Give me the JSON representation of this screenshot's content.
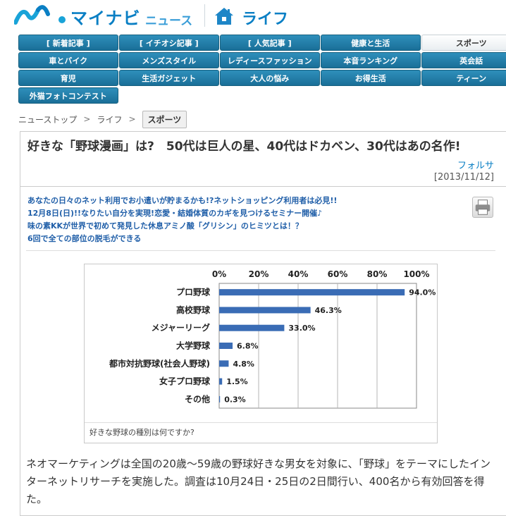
{
  "header": {
    "brand": "マイナビ",
    "brand_sub": "ニュース",
    "section": "ライフ"
  },
  "nav": {
    "rows": [
      [
        "[ 新着記事 ]",
        "[ イチオシ記事 ]",
        "[ 人気記事 ]",
        "健康と生活",
        "スポーツ"
      ],
      [
        "車とバイク",
        "メンズスタイル",
        "レディースファッション",
        "本音ランキング",
        "英会話"
      ],
      [
        "育児",
        "生活ガジェット",
        "大人の悩み",
        "お得生活",
        "ティーン"
      ],
      [
        "外猫フォトコンテスト"
      ]
    ],
    "active": "スポーツ"
  },
  "breadcrumb": {
    "items": [
      "ニューストップ",
      "ライフ"
    ],
    "current": "スポーツ"
  },
  "article": {
    "title": "好きな「野球漫画」は?　50代は巨人の星、40代はドカベン、30代はあの名作!",
    "author": "フォルサ",
    "date": "[2013/11/12]",
    "promos": [
      "あなたの日々のネット利用でお小遣いが貯まるかも!?ネットショッピング利用者は必見!!",
      "12月8日(日)!!なりたい自分を実現!恋愛・結婚体質のカギを見つけるセミナー開催♪",
      "味の素KKが世界で初めて発見した休息アミノ酸「グリシン」のヒミツとは！？",
      "6回で全ての部位の脱毛ができる"
    ],
    "chart_caption": "好きな野球の種別は何ですか?",
    "body": "ネオマーケティングは全国の20歳～59歳の野球好きな男女を対象に、「野球」をテーマにしたインターネットリサーチを実施した。調査は10月24日・25日の2日間行い、400名から有効回答を得た。"
  },
  "chart_data": {
    "type": "bar",
    "orientation": "horizontal",
    "categories": [
      "プロ野球",
      "高校野球",
      "メジャーリーグ",
      "大学野球",
      "都市対抗野球(社会人野球)",
      "女子プロ野球",
      "その他"
    ],
    "values": [
      94.0,
      46.3,
      33.0,
      6.8,
      4.8,
      1.5,
      0.3
    ],
    "value_labels": [
      "94.0%",
      "46.3%",
      "33.0%",
      "6.8%",
      "4.8%",
      "1.5%",
      "0.3%"
    ],
    "x_ticks": [
      "0%",
      "20%",
      "40%",
      "60%",
      "80%",
      "100%"
    ],
    "xlim": [
      0,
      100
    ],
    "axis_position": "top",
    "grid": true,
    "bar_color": "#3a6cb5",
    "title": "",
    "xlabel": "",
    "ylabel": ""
  }
}
